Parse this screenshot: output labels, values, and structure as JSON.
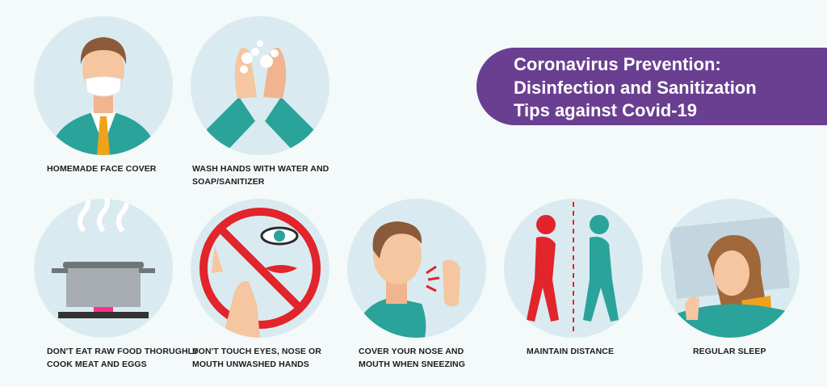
{
  "banner": {
    "title": "Coronavirus Prevention:\nDisinfection and Sanitization\nTips against Covid-19"
  },
  "tips": [
    {
      "line1": "HOMEMADE FACE COVER",
      "line2": ""
    },
    {
      "line1": "WASH HANDS WITH WATER AND",
      "line2": "SOAP/SANITIZER"
    },
    {
      "line1": "DON'T EAT RAW FOOD THORUGHLY",
      "line2": "COOK MEAT AND EGGS"
    },
    {
      "line1": "DON'T TOUCH EYES, NOSE OR",
      "line2": "MOUTH UNWASHED HANDS"
    },
    {
      "line1": "COVER YOUR NOSE AND",
      "line2": "MOUTH WHEN SNEEZING"
    },
    {
      "line1": "MAINTAIN DISTANCE",
      "line2": ""
    },
    {
      "line1": "REGULAR SLEEP",
      "line2": ""
    }
  ],
  "colors": {
    "banner": "#6a3f91",
    "circle": "#d9ebf0",
    "teal": "#2aa39a",
    "red": "#e2242b",
    "skin": "#f5c6a0"
  }
}
